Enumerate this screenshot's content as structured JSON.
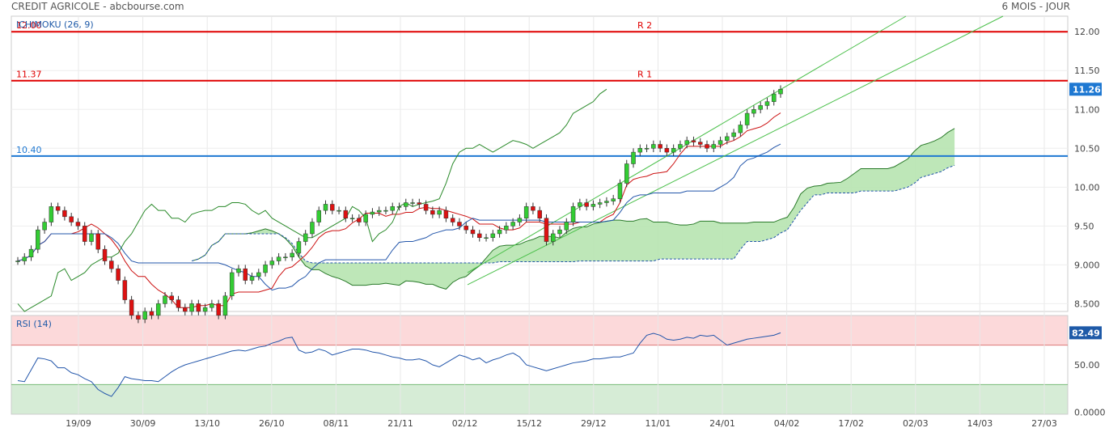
{
  "header": {
    "title": "CREDIT AGRICOLE - abcbourse.com",
    "period": "6 MOIS - JOUR"
  },
  "chart_data": {
    "type": "candlestick",
    "indicator_label": "ICHIMOKU (26, 9)",
    "x_ticks": [
      "19/09",
      "30/09",
      "13/10",
      "26/10",
      "08/11",
      "21/11",
      "02/12",
      "15/12",
      "29/12",
      "11/01",
      "24/01",
      "04/02",
      "17/02",
      "02/03",
      "14/03",
      "27/03"
    ],
    "y_ticks": [
      "12.00",
      "11.50",
      "11.00",
      "10.50",
      "10.00",
      "9.50",
      "9.000",
      "8.500"
    ],
    "y_range": [
      8.4,
      12.2
    ],
    "last_price": "11.26",
    "last_price_value": 11.26,
    "levels": [
      {
        "label": "12.00",
        "value": 12.0,
        "tag": "R 2",
        "color": "#e00000"
      },
      {
        "label": "11.37",
        "value": 11.37,
        "tag": "R 1",
        "color": "#e00000"
      },
      {
        "label": "10.40",
        "value": 10.4,
        "tag": "",
        "color": "#1e78d2"
      }
    ],
    "closes": [
      9.05,
      9.1,
      9.2,
      9.45,
      9.55,
      9.75,
      9.7,
      9.62,
      9.55,
      9.5,
      9.3,
      9.4,
      9.2,
      9.05,
      8.95,
      8.8,
      8.55,
      8.35,
      8.3,
      8.4,
      8.35,
      8.5,
      8.6,
      8.55,
      8.45,
      8.4,
      8.5,
      8.4,
      8.45,
      8.5,
      8.35,
      8.6,
      8.9,
      8.95,
      8.8,
      8.85,
      8.9,
      9.0,
      9.05,
      9.1,
      9.1,
      9.15,
      9.3,
      9.4,
      9.55,
      9.7,
      9.78,
      9.7,
      9.7,
      9.6,
      9.6,
      9.55,
      9.65,
      9.68,
      9.7,
      9.7,
      9.75,
      9.75,
      9.8,
      9.8,
      9.78,
      9.7,
      9.65,
      9.7,
      9.6,
      9.55,
      9.5,
      9.45,
      9.4,
      9.35,
      9.35,
      9.4,
      9.45,
      9.5,
      9.55,
      9.6,
      9.75,
      9.7,
      9.6,
      9.3,
      9.4,
      9.45,
      9.55,
      9.75,
      9.8,
      9.75,
      9.78,
      9.8,
      9.82,
      9.85,
      10.05,
      10.3,
      10.45,
      10.5,
      10.5,
      10.55,
      10.5,
      10.45,
      10.5,
      10.55,
      10.6,
      10.58,
      10.55,
      10.5,
      10.55,
      10.6,
      10.65,
      10.7,
      10.8,
      10.95,
      11.0,
      11.05,
      11.1,
      11.2,
      11.26
    ],
    "rsi": {
      "label": "RSI (14)",
      "value": "82.49",
      "ticks": [
        "50.00",
        "0.0000"
      ],
      "bands": [
        70,
        30
      ],
      "values": [
        34,
        33,
        45,
        57,
        56,
        54,
        47,
        47,
        42,
        40,
        36,
        33,
        25,
        21,
        18,
        27,
        38,
        36,
        35,
        34,
        34,
        33,
        38,
        43,
        47,
        50,
        52,
        54,
        56,
        58,
        60,
        62,
        64,
        65,
        64,
        66,
        68,
        69,
        72,
        74,
        77,
        78,
        65,
        62,
        63,
        66,
        64,
        60,
        62,
        64,
        66,
        66,
        65,
        63,
        62,
        60,
        58,
        57,
        55,
        55,
        56,
        54,
        50,
        48,
        52,
        56,
        60,
        58,
        55,
        57,
        52,
        55,
        57,
        60,
        62,
        58,
        50,
        48,
        46,
        44,
        46,
        48,
        50,
        52,
        53,
        54,
        56,
        56,
        57,
        58,
        58,
        60,
        62,
        72,
        80,
        82,
        80,
        76,
        75,
        76,
        78,
        77,
        80,
        79,
        80,
        75,
        70,
        72,
        74,
        76,
        77,
        78,
        79,
        80,
        82.49
      ]
    }
  }
}
